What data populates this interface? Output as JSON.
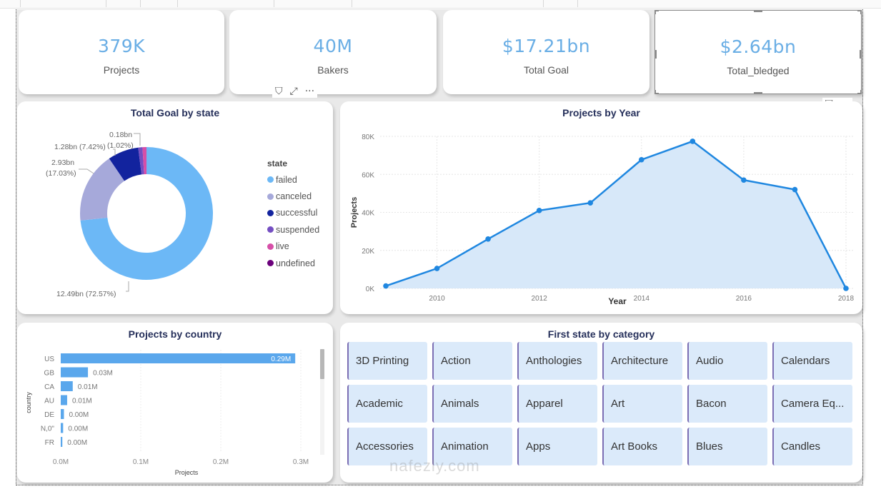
{
  "kpis": [
    {
      "value": "379K",
      "label": "Projects"
    },
    {
      "value": "40M",
      "label": "Bakers"
    },
    {
      "value": "$17.21bn",
      "label": "Total Goal"
    },
    {
      "value": "$2.64bn",
      "label": "Total_bledged"
    }
  ],
  "visual_header_icons": {
    "filter": "filter-icon",
    "focus": "focus-mode-icon",
    "more": "more-options-icon",
    "filter_glyph": "⛉",
    "focus_glyph": "⤢",
    "more_glyph": "···"
  },
  "donut": {
    "title": "Total Goal by state",
    "legend_title": "state",
    "chart_data": {
      "type": "pie",
      "title": "Total Goal by state",
      "unit": "bn",
      "slices": [
        {
          "name": "failed",
          "value": 12.49,
          "percent": 72.57,
          "label": "12.49bn (72.57%)",
          "color": "#6cb8f6"
        },
        {
          "name": "canceled",
          "value": 2.93,
          "percent": 17.03,
          "label": "2.93bn\n(17.03%)",
          "color": "#a6a9da"
        },
        {
          "name": "successful",
          "value": 1.28,
          "percent": 7.42,
          "label": "1.28bn (7.42%)",
          "color": "#12239e"
        },
        {
          "name": "suspended",
          "value": 0.18,
          "percent": 1.02,
          "label": "0.18bn\n(1.02%)",
          "color": "#744ec2"
        },
        {
          "name": "live",
          "value": 0.17,
          "percent": 0.96,
          "label": "",
          "color": "#d64fa8"
        },
        {
          "name": "undefined",
          "value": 0.0,
          "percent": 0.0,
          "label": "",
          "color": "#6b007b"
        }
      ],
      "legend_position": "right"
    }
  },
  "line": {
    "title": "Projects by Year",
    "chart_data": {
      "type": "area",
      "title": "Projects by Year",
      "xlabel": "Year",
      "ylabel": "Projects",
      "x": [
        2009,
        2010,
        2011,
        2012,
        2013,
        2014,
        2015,
        2016,
        2017,
        2018
      ],
      "series": [
        {
          "name": "Projects",
          "values": [
            1300,
            10500,
            26000,
            41000,
            45000,
            67700,
            77400,
            57000,
            52000,
            0
          ],
          "color": "#1f87e0"
        }
      ],
      "xticks": [
        "2010",
        "2012",
        "2014",
        "2016",
        "2018"
      ],
      "xtick_values": [
        2010,
        2012,
        2014,
        2016,
        2018
      ],
      "yticks": [
        "0K",
        "20K",
        "40K",
        "60K",
        "80K"
      ],
      "ytick_values": [
        0,
        20000,
        40000,
        60000,
        80000
      ],
      "ylim": [
        0,
        80000
      ],
      "xlim": [
        2009,
        2018
      ],
      "grid": true
    }
  },
  "bar": {
    "title": "Projects by country",
    "chart_data": {
      "type": "bar",
      "orientation": "horizontal",
      "title": "Projects by country",
      "xlabel": "Projects",
      "ylabel": "country",
      "categories": [
        "US",
        "GB",
        "CA",
        "AU",
        "DE",
        "N,0\"",
        "FR"
      ],
      "values": [
        0.293,
        0.034,
        0.015,
        0.008,
        0.004,
        0.003,
        0.002
      ],
      "data_labels": [
        "0.29M",
        "0.03M",
        "0.01M",
        "0.01M",
        "0.00M",
        "0.00M",
        "0.00M"
      ],
      "xticks": [
        "0.0M",
        "0.1M",
        "0.2M",
        "0.3M"
      ],
      "xtick_values": [
        0,
        0.1,
        0.2,
        0.3
      ],
      "xlim": [
        0,
        0.3
      ],
      "color": "#5aa7ec",
      "grid": true
    }
  },
  "tiles": {
    "title": "First state by category",
    "items": [
      "3D Printing",
      "Action",
      "Anthologies",
      "Architecture",
      "Audio",
      "Calendars",
      "Academic",
      "Animals",
      "Apparel",
      "Art",
      "Bacon",
      "Camera Eq...",
      "Accessories",
      "Animation",
      "Apps",
      "Art Books",
      "Blues",
      "Candles"
    ]
  },
  "watermark": "nafezly.com"
}
